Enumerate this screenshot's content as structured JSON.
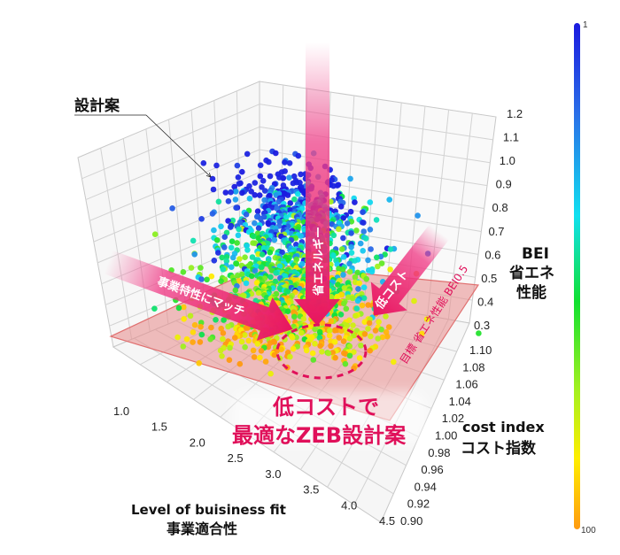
{
  "chart_data": {
    "type": "scatter3d",
    "title": "",
    "annotation_label": "設計案",
    "axes": {
      "x": {
        "label_en": "Level of buisiness fit",
        "label_jp": "事業適合性",
        "ticks": [
          "1.0",
          "1.5",
          "2.0",
          "2.5",
          "3.0",
          "3.5",
          "4.0",
          "4.5"
        ],
        "range": [
          1.0,
          4.5
        ]
      },
      "y": {
        "label_en": "cost index",
        "label_jp": "コスト指数",
        "ticks": [
          "0.90",
          "0.92",
          "0.94",
          "0.96",
          "0.98",
          "1.00",
          "1.02",
          "1.04",
          "1.06",
          "1.08",
          "1.10"
        ],
        "range": [
          0.9,
          1.1
        ]
      },
      "z": {
        "label_en": "BEI",
        "label_jp_line1": "省エネ",
        "label_jp_line2": "性能",
        "ticks": [
          "0.3",
          "0.4",
          "0.5",
          "0.6",
          "0.7",
          "0.8",
          "0.9",
          "1.0",
          "1.1",
          "1.2"
        ],
        "range": [
          0.3,
          1.2
        ]
      }
    },
    "target_plane": {
      "label": "目標 省エネ性能 BEI0.5",
      "bei": 0.5,
      "color": "#e88a8a"
    },
    "arrows": [
      {
        "label": "事業特性にマッチ",
        "direction": "along business fit axis"
      },
      {
        "label": "省エネルギー",
        "direction": "down along BEI"
      },
      {
        "label": "低コスト",
        "direction": "along cost index axis"
      }
    ],
    "callout": {
      "line1": "低コストで",
      "line2": "最適なZEB設計案"
    },
    "colorbar": {
      "min_label": "1",
      "max_label": "100",
      "colors": [
        "#1a1adf",
        "#2a6fe8",
        "#10e0f0",
        "#10e030",
        "#a0f020",
        "#ffee00",
        "#ff9a10"
      ]
    },
    "series": [
      {
        "name": "design candidates",
        "count_approx": 2000,
        "description": "Dense cloud of design points centered near x≈2.8, y≈1.00, BEI 0.3–1.0; blue (rank 1) points higher BEI, yellow/orange (rank 100) points near BEI plane"
      }
    ],
    "grid": true,
    "legend_position": "right colorbar"
  },
  "colors": {
    "accent": "#e8155f",
    "plane": "#e88a8a",
    "grid": "#cccccc"
  }
}
